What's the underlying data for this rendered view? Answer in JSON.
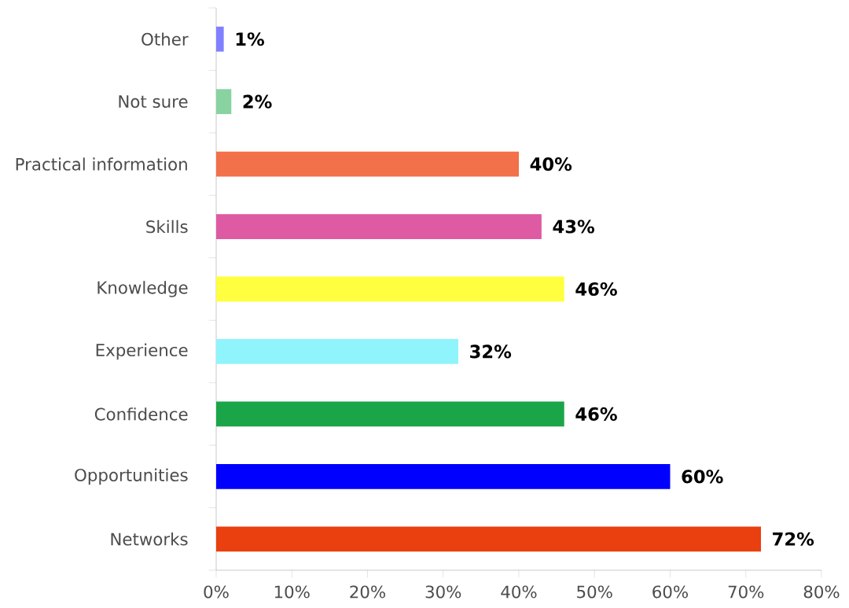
{
  "chart_data": {
    "type": "bar",
    "orientation": "horizontal",
    "categories": [
      "Other",
      "Not sure",
      "Practical information",
      "Skills",
      "Knowledge",
      "Experience",
      "Confidence",
      "Opportunities",
      "Networks"
    ],
    "values": [
      1,
      2,
      40,
      43,
      46,
      32,
      46,
      60,
      72
    ],
    "value_labels": [
      "1%",
      "2%",
      "40%",
      "43%",
      "46%",
      "32%",
      "46%",
      "60%",
      "72%"
    ],
    "colors": [
      "#8080ff",
      "#88d3a0",
      "#f2704a",
      "#de5aa2",
      "#ffff40",
      "#90f4fc",
      "#1aa648",
      "#0000ff",
      "#ea3f0e"
    ],
    "xlim": [
      0,
      80
    ],
    "xticks": [
      {
        "value": 0,
        "label": "0%"
      },
      {
        "value": 10,
        "label": "10%"
      },
      {
        "value": 20,
        "label": "20%"
      },
      {
        "value": 30,
        "label": "30%"
      },
      {
        "value": 40,
        "label": "40%"
      },
      {
        "value": 50,
        "label": "50%"
      },
      {
        "value": 60,
        "label": "60%"
      },
      {
        "value": 70,
        "label": "70%"
      },
      {
        "value": 80,
        "label": "80%"
      }
    ]
  }
}
